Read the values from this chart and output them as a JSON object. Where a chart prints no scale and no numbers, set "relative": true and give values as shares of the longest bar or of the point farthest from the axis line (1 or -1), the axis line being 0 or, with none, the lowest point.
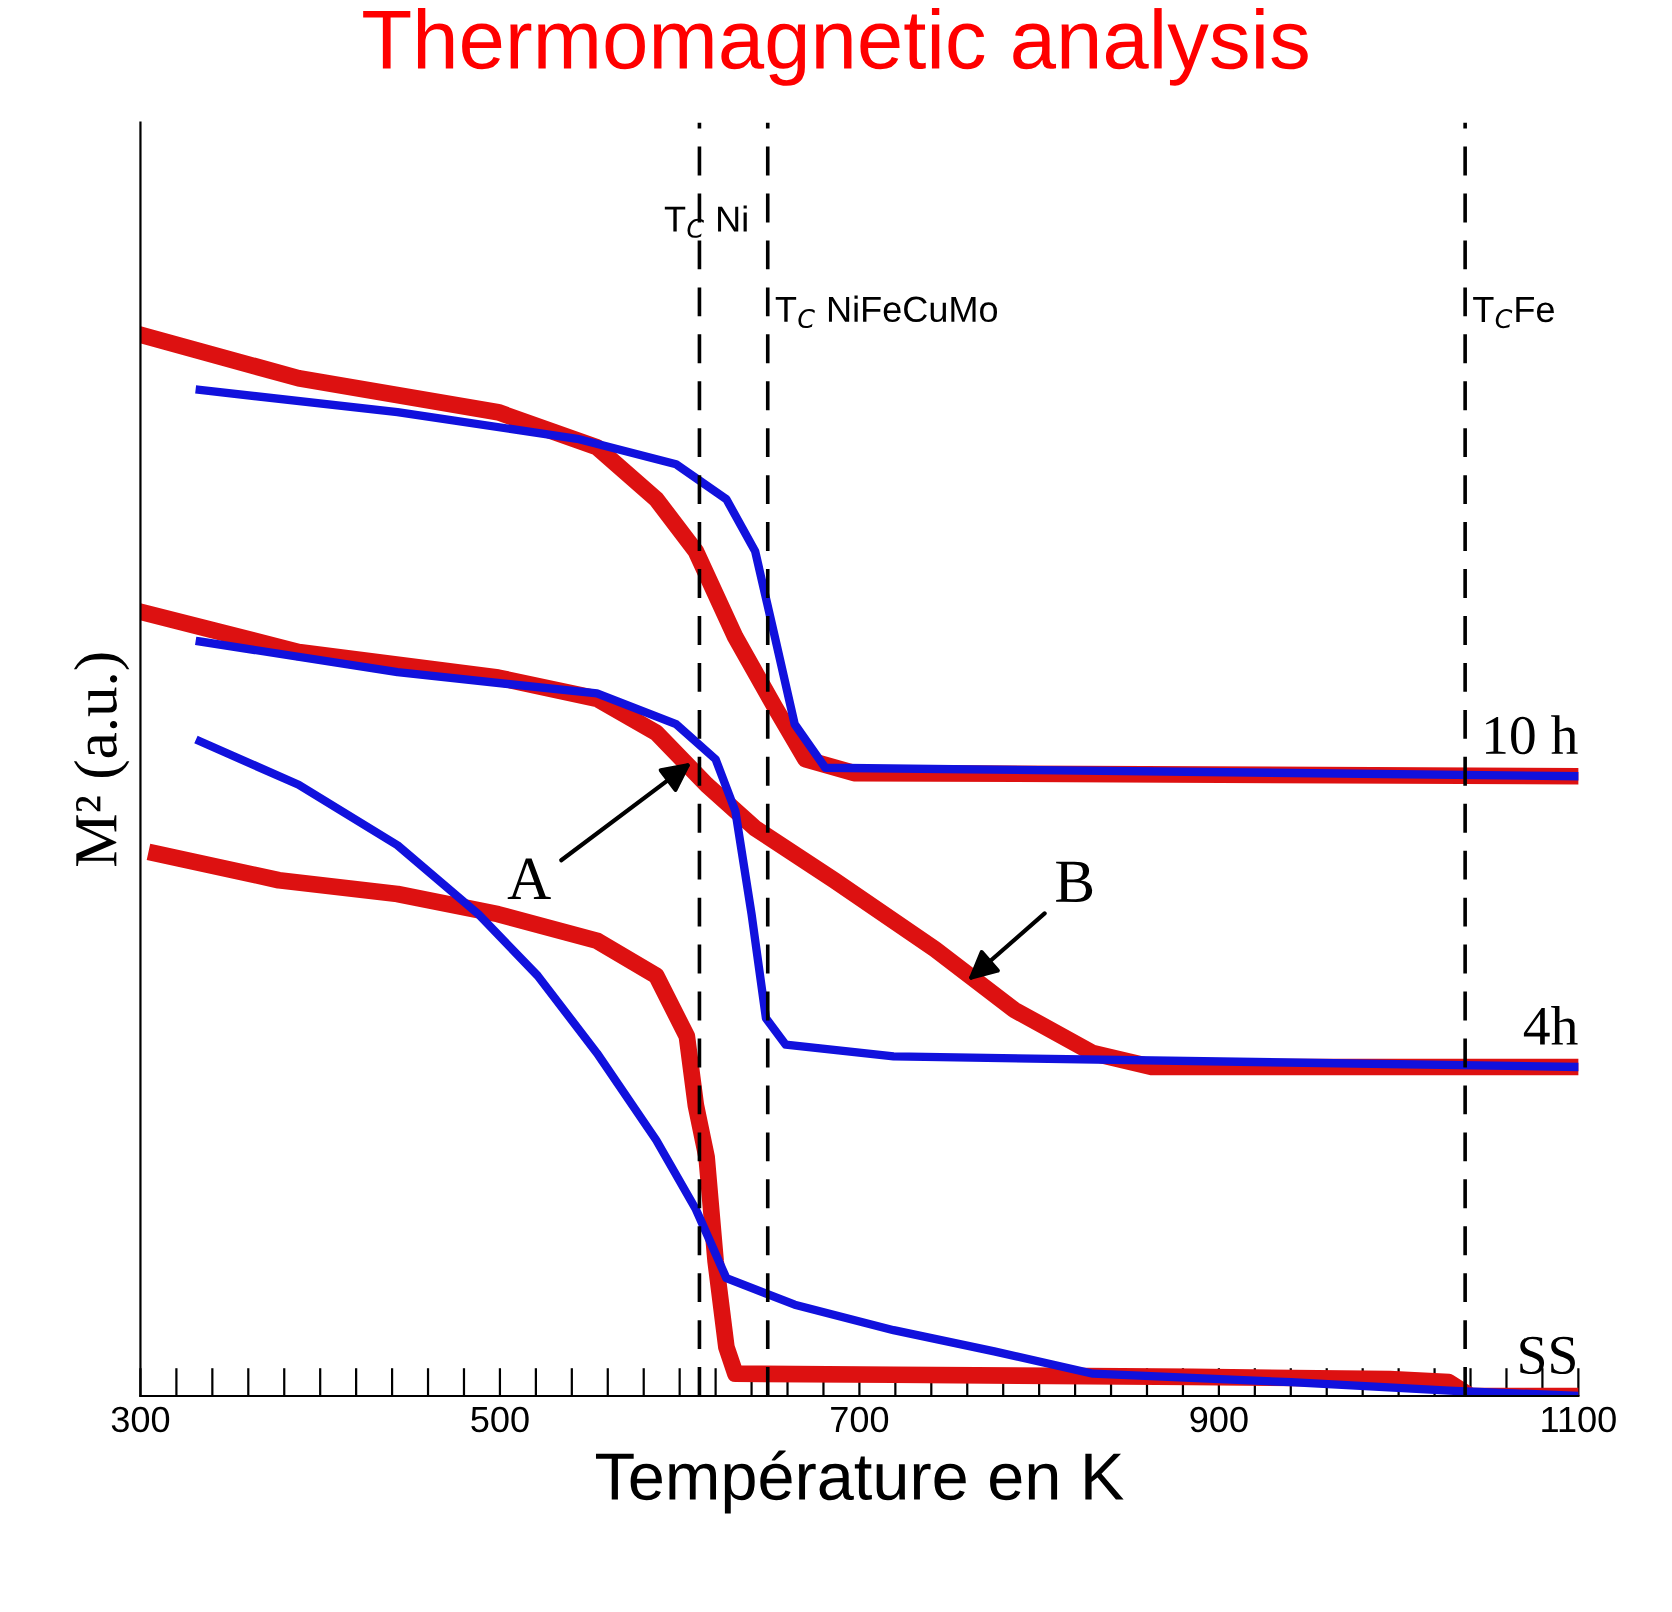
{
  "chart_data": {
    "type": "line",
    "title": "Thermomagnetic analysis",
    "xlabel": "Température en K",
    "ylabel": "M² (a.u.)",
    "relative": true,
    "grid": false,
    "marker": "none",
    "line_style": "solid",
    "xlim": [
      300,
      1100
    ],
    "xticks": [
      300,
      {
        "value": 320,
        "label": null
      },
      {
        "value": 340,
        "label": null
      },
      {
        "value": 360,
        "label": null
      },
      {
        "value": 380,
        "label": null
      },
      {
        "value": 400,
        "label": null
      },
      {
        "value": 420,
        "label": null
      },
      {
        "value": 440,
        "label": null
      },
      {
        "value": 460,
        "label": null
      },
      {
        "value": 480,
        "label": null
      },
      500,
      {
        "value": 520,
        "label": null
      },
      {
        "value": 540,
        "label": null
      },
      {
        "value": 560,
        "label": null
      },
      {
        "value": 580,
        "label": null
      },
      {
        "value": 600,
        "label": null
      },
      {
        "value": 620,
        "label": null
      },
      {
        "value": 640,
        "label": null
      },
      {
        "value": 660,
        "label": null
      },
      {
        "value": 680,
        "label": null
      },
      700,
      {
        "value": 720,
        "label": null
      },
      {
        "value": 740,
        "label": null
      },
      {
        "value": 760,
        "label": null
      },
      {
        "value": 780,
        "label": null
      },
      {
        "value": 800,
        "label": null
      },
      {
        "value": 820,
        "label": null
      },
      {
        "value": 840,
        "label": null
      },
      {
        "value": 860,
        "label": null
      },
      {
        "value": 880,
        "label": null
      },
      900,
      {
        "value": 920,
        "label": null
      },
      {
        "value": 940,
        "label": null
      },
      {
        "value": 960,
        "label": null
      },
      {
        "value": 980,
        "label": null
      },
      {
        "value": 1000,
        "label": null
      },
      {
        "value": 1020,
        "label": null
      },
      {
        "value": 1040,
        "label": null
      },
      {
        "value": 1060,
        "label": null
      },
      {
        "value": 1080,
        "label": null
      },
      1100
    ],
    "tick_labels": "x",
    "series": [
      {
        "color": "#dd1111",
        "x": [
          309,
          377,
          443,
          499,
          554,
          587,
          604,
          609,
          615,
          620,
          626,
          631,
          719,
          885,
          995,
          1028,
          1040,
          1100
        ],
        "values": [
          0.511,
          0.486,
          0.473,
          0.454,
          0.429,
          0.396,
          0.339,
          0.274,
          0.225,
          0.127,
          0.046,
          0.021,
          0.02,
          0.018,
          0.016,
          0.013,
          0,
          0
        ]
      },
      {
        "color": "#1111dd",
        "x": [
          333,
          388,
          443,
          488,
          521,
          554,
          587,
          609,
          626,
          664,
          719,
          775,
          830,
          940,
          1028,
          1100
        ],
        "values": [
          0.617,
          0.576,
          0.519,
          0.454,
          0.396,
          0.323,
          0.241,
          0.176,
          0.111,
          0.086,
          0.062,
          0.042,
          0.021,
          0.013,
          0.005,
          0
        ]
      },
      {
        "color": "#dd1111",
        "x": [
          300,
          388,
          499,
          554,
          587,
          615,
          642,
          686,
          742,
          786,
          830,
          863,
          1100
        ],
        "values": [
          0.739,
          0.701,
          0.677,
          0.657,
          0.625,
          0.576,
          0.535,
          0.486,
          0.421,
          0.364,
          0.323,
          0.31,
          0.31
        ]
      },
      {
        "color": "#1111dd",
        "x": [
          333,
          443,
          554,
          598,
          620,
          631,
          640,
          648,
          659,
          719,
          1100
        ],
        "values": [
          0.711,
          0.682,
          0.662,
          0.633,
          0.6,
          0.551,
          0.454,
          0.356,
          0.331,
          0.32,
          0.31
        ]
      },
      {
        "color": "#dd1111",
        "x": [
          300,
          388,
          499,
          554,
          587,
          609,
          631,
          653,
          670,
          697,
          1100
        ],
        "values": [
          1,
          0.959,
          0.927,
          0.894,
          0.845,
          0.796,
          0.715,
          0.649,
          0.6,
          0.587,
          0.584
        ]
      },
      {
        "color": "#1111dd",
        "x": [
          333,
          443,
          543,
          598,
          626,
          642,
          653,
          664,
          681,
          1100
        ],
        "values": [
          0.948,
          0.927,
          0.902,
          0.878,
          0.845,
          0.796,
          0.715,
          0.633,
          0.592,
          0.584
        ]
      }
    ],
    "ref_lines": [
      {
        "axis": "x",
        "value": 611,
        "label": "T$_{C}$ Ni",
        "line_style": "dashed",
        "color": "#000000"
      },
      {
        "axis": "x",
        "value": 649,
        "label": "T$_{C}$ NiFeCuMo",
        "line_style": "dashed",
        "color": "#000000"
      },
      {
        "axis": "x",
        "value": 1037,
        "label": "T$_{C}$Fe",
        "line_style": "dashed",
        "color": "#000000"
      }
    ],
    "annotations": [
      {
        "text": "10 h",
        "x": 1100,
        "y": 0.584
      },
      {
        "text": "4h",
        "x": 1100,
        "y": 0.31
      },
      {
        "text": "SS",
        "x": 1100,
        "y": 0
      },
      {
        "text": "A",
        "x": 609,
        "y": 0.6
      },
      {
        "text": "B",
        "x": 758,
        "y": 0.388
      }
    ]
  }
}
